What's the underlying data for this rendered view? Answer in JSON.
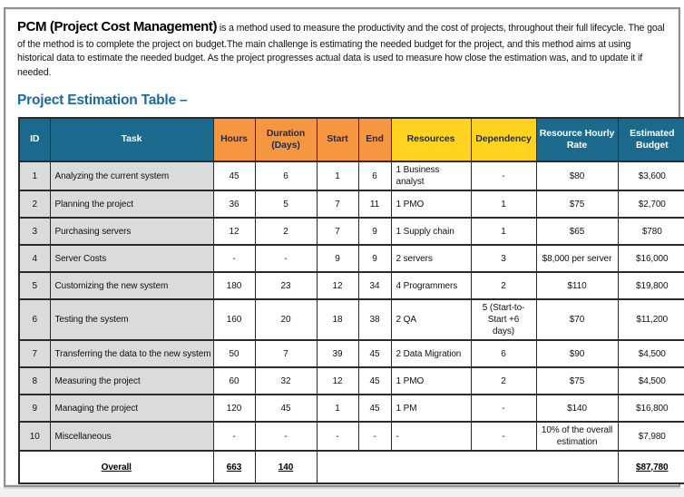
{
  "intro": {
    "lead": "PCM (Project Cost Management)",
    "body": " is a method used to measure the productivity and the cost of projects, throughout their full lifecycle. The goal of the method is to complete the project on budget.The main challenge is estimating the needed budget for the project, and this method aims at using historical data to estimate the needed budget. As the project progresses actual data is used to measure how close the estimation was, and to update it if needed."
  },
  "heading": "Project Estimation Table –",
  "table": {
    "columns": [
      {
        "key": "id",
        "label": "ID",
        "group": "teal"
      },
      {
        "key": "task",
        "label": "Task",
        "group": "teal"
      },
      {
        "key": "hours",
        "label": "Hours",
        "group": "orange"
      },
      {
        "key": "duration",
        "label": "Duration (Days)",
        "group": "orange"
      },
      {
        "key": "start",
        "label": "Start",
        "group": "orange"
      },
      {
        "key": "end",
        "label": "End",
        "group": "orange"
      },
      {
        "key": "resources",
        "label": "Resources",
        "group": "yellow"
      },
      {
        "key": "dependency",
        "label": "Dependency",
        "group": "yellow"
      },
      {
        "key": "rate",
        "label": "Resource Hourly Rate",
        "group": "teal"
      },
      {
        "key": "budget",
        "label": "Estimated Budget",
        "group": "teal"
      }
    ],
    "rows": [
      {
        "cells": [
          "1",
          "Analyzing the current system",
          "45",
          "6",
          "1",
          "6",
          "1 Business analyst",
          "-",
          "$80",
          "$3,600"
        ]
      },
      {
        "cells": [
          "2",
          "Planning the project",
          "36",
          "5",
          "7",
          "11",
          "1 PMO",
          "1",
          "$75",
          "$2,700"
        ]
      },
      {
        "cells": [
          "3",
          "Purchasing servers",
          "12",
          "2",
          "7",
          "9",
          "1 Supply chain",
          "1",
          "$65",
          "$780"
        ]
      },
      {
        "cells": [
          "4",
          "Server Costs",
          "-",
          "-",
          "9",
          "9",
          "2 servers",
          "3",
          "$8,000 per server",
          "$16,000"
        ]
      },
      {
        "cells": [
          "5",
          "Customizing the new system",
          "180",
          "23",
          "12",
          "34",
          "4 Programmers",
          "2",
          "$110",
          "$19,800"
        ]
      },
      {
        "cells": [
          "6",
          "Testing the system",
          "160",
          "20",
          "18",
          "38",
          "2 QA",
          "5 (Start-to-Start +6 days)",
          "$70",
          "$11,200"
        ]
      },
      {
        "cells": [
          "7",
          "Transferring the data to the new system",
          "50",
          "7",
          "39",
          "45",
          "2 Data Migration",
          "6",
          "$90",
          "$4,500"
        ]
      },
      {
        "cells": [
          "8",
          "Measuring the project",
          "60",
          "32",
          "12",
          "45",
          "1 PMO",
          "2",
          "$75",
          "$4,500"
        ]
      },
      {
        "cells": [
          "9",
          "Managing the project",
          "120",
          "45",
          "1",
          "45",
          "1 PM",
          "-",
          "$140",
          "$16,800"
        ]
      },
      {
        "cells": [
          "10",
          "Miscellaneous",
          "-",
          "-",
          "-",
          "-",
          "-",
          "-",
          "10% of the overall estimation",
          "$7,980"
        ]
      }
    ],
    "overall": {
      "label": "Overall",
      "hours": "663",
      "duration": "140",
      "budget": "$87,780"
    }
  },
  "colors": {
    "teal": "#1b6a8e",
    "orange": "#f79641",
    "yellow": "#ffd320",
    "graylight": "#dbdbdb",
    "graydark": "#898989",
    "heading": "#186a9f",
    "borderline": "#2b2b2b",
    "frame": "#8f8f8f",
    "headertext": "#1c2c48"
  }
}
